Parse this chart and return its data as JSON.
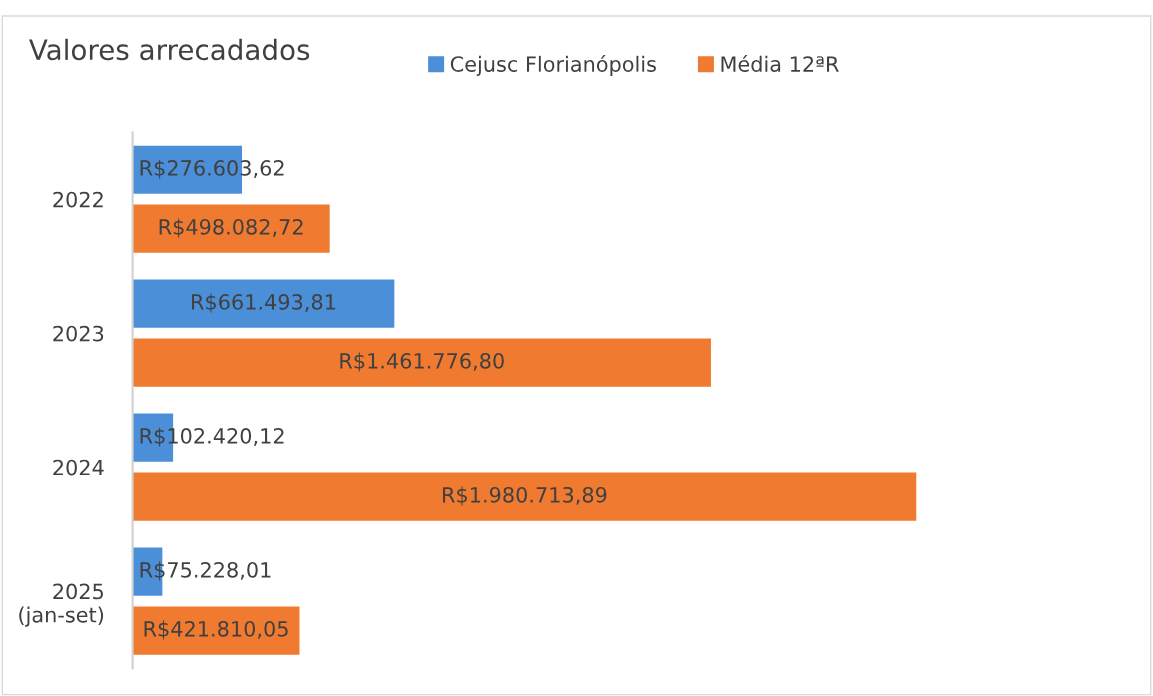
{
  "chart_data": {
    "type": "bar",
    "orientation": "horizontal",
    "title": "Valores arrecadados",
    "categories": [
      "2022",
      "2023",
      "2024",
      "2025\n(jan-set)"
    ],
    "series": [
      {
        "name": "Cejusc Florianópolis",
        "color": "#4a8fd8",
        "values": [
          276603.62,
          661493.81,
          102420.12,
          75228.01
        ],
        "value_labels": [
          "R$276.603,62",
          "R$661.493,81",
          "R$102.420,12",
          "R$75.228,01"
        ]
      },
      {
        "name": "Média 12ªR",
        "color": "#ef7a30",
        "values": [
          498082.72,
          1461776.8,
          1980713.89,
          421810.05
        ],
        "value_labels": [
          "R$498.082,72",
          "R$1.461.776,80",
          "R$1.980.713,89",
          "R$421.810,05"
        ]
      }
    ],
    "tick_labels": "y",
    "legend": "top",
    "grid": false
  }
}
